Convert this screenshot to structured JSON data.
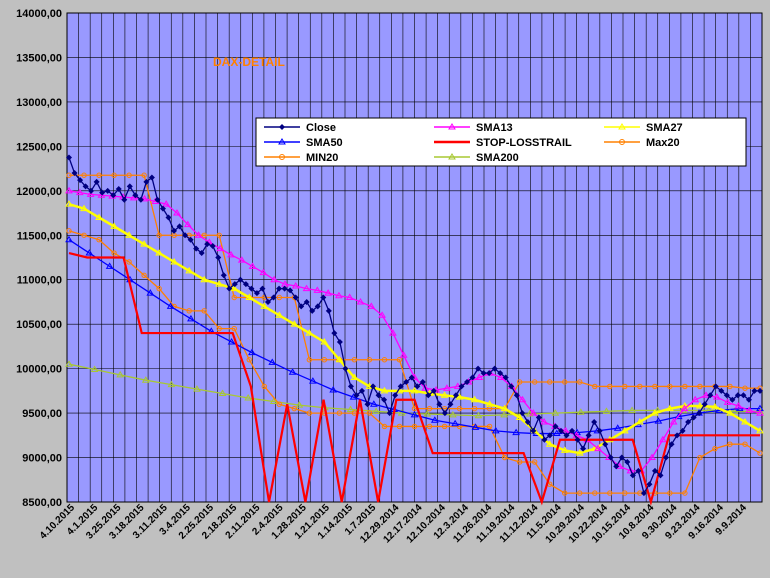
{
  "chart_data": {
    "type": "line",
    "title": "DAX-DETAIL",
    "ylim": [
      8500,
      14000
    ],
    "yticks": [
      "14000,00",
      "13500,00",
      "13000,00",
      "12500,00",
      "12000,00",
      "11500,00",
      "11000,00",
      "10500,00",
      "10000,00",
      "9500,00",
      "9000,00",
      "8500,00"
    ],
    "x_direction": "reversed (newest on left)",
    "x_tick_labels": [
      "4.10.2015",
      "4.1.2015",
      "3.25.2015",
      "3.18.2015",
      "3.11.2015",
      "3.4.2015",
      "2.25.2015",
      "2.18.2015",
      "2.11.2015",
      "2.4.2015",
      "1.28.2015",
      "1.21.2015",
      "1.14.2015",
      "1.7.2015",
      "12.29.2014",
      "12.17.2014",
      "12.10.2014",
      "12.3.2014",
      "11.26.2014",
      "11.19.2014",
      "11.12.2014",
      "11.5.2014",
      "10.29.2014",
      "10.22.2014",
      "10.15.2014",
      "10.8.2014",
      "9.30.2014",
      "9.23.2014",
      "9.16.2014",
      "9.9.2014"
    ],
    "series": [
      {
        "name": "Close",
        "color": "#000080",
        "marker": "diamond",
        "values": [
          12375,
          12200,
          12120,
          12050,
          12000,
          12100,
          11980,
          12000,
          11950,
          12020,
          11900,
          12050,
          11950,
          11900,
          12100,
          12150,
          11900,
          11800,
          11700,
          11550,
          11600,
          11500,
          11450,
          11350,
          11300,
          11400,
          11380,
          11250,
          11050,
          10900,
          10950,
          11000,
          10950,
          10900,
          10850,
          10900,
          10750,
          10800,
          10900,
          10900,
          10880,
          10800,
          10700,
          10750,
          10650,
          10700,
          10800,
          10650,
          10400,
          10300,
          10000,
          9800,
          9700,
          9750,
          9600,
          9800,
          9700,
          9650,
          9500,
          9700,
          9800,
          9850,
          9900,
          9800,
          9850,
          9700,
          9750,
          9600,
          9500,
          9600,
          9700,
          9800,
          9850,
          9900,
          10000,
          9950,
          9950,
          10000,
          9950,
          9900,
          9800,
          9700,
          9500,
          9400,
          9300,
          9450,
          9200,
          9250,
          9350,
          9300,
          9250,
          9300,
          9200,
          9100,
          9250,
          9400,
          9300,
          9150,
          9000,
          8900,
          9000,
          8950,
          8800,
          8850,
          8600,
          8700,
          8850,
          8800,
          9000,
          9150,
          9250,
          9300,
          9400,
          9450,
          9500,
          9600,
          9700,
          9800,
          9750,
          9700,
          9650,
          9700,
          9700,
          9650,
          9750,
          9750
        ]
      },
      {
        "name": "SMA13",
        "color": "#ff00ff",
        "marker": "triangle",
        "values": [
          12000,
          11980,
          11960,
          11950,
          11940,
          11930,
          11920,
          11910,
          11880,
          11850,
          11750,
          11620,
          11500,
          11420,
          11350,
          11280,
          11220,
          11150,
          11080,
          11000,
          10950,
          10930,
          10900,
          10880,
          10850,
          10820,
          10800,
          10750,
          10700,
          10600,
          10400,
          10150,
          9900,
          9780,
          9760,
          9780,
          9800,
          9850,
          9900,
          9950,
          9900,
          9800,
          9650,
          9500,
          9400,
          9350,
          9300,
          9250,
          9200,
          9100,
          9000,
          8900,
          8850,
          8850,
          9000,
          9200,
          9400,
          9550,
          9650,
          9700,
          9680,
          9620,
          9580,
          9530,
          9500
        ]
      },
      {
        "name": "SMA27",
        "color": "#ffff00",
        "marker": "triangle",
        "values": [
          11850,
          11800,
          11700,
          11600,
          11500,
          11400,
          11300,
          11200,
          11100,
          11000,
          10950,
          10900,
          10800,
          10700,
          10600,
          10500,
          10400,
          10300,
          10100,
          9900,
          9800,
          9750,
          9750,
          9750,
          9720,
          9700,
          9680,
          9650,
          9600,
          9550,
          9450,
          9300,
          9150,
          9080,
          9050,
          9100,
          9200,
          9300,
          9400,
          9500,
          9550,
          9580,
          9580,
          9570,
          9500,
          9400,
          9300
        ]
      },
      {
        "name": "SMA50",
        "color": "#0000ff",
        "marker": "triangle",
        "values": [
          11450,
          11300,
          11150,
          11000,
          10850,
          10700,
          10560,
          10420,
          10300,
          10180,
          10070,
          9960,
          9860,
          9760,
          9680,
          9600,
          9540,
          9480,
          9420,
          9380,
          9340,
          9300,
          9280,
          9270,
          9270,
          9280,
          9300,
          9330,
          9370,
          9410,
          9460,
          9500,
          9530,
          9550,
          9550
        ]
      },
      {
        "name": "STOP-LOSSTRAIL",
        "color": "#ff0000",
        "marker": "none",
        "values": [
          11300,
          11250,
          11250,
          11250,
          10400,
          10400,
          10400,
          10400,
          10400,
          10400,
          9800,
          8500,
          9600,
          8500,
          9650,
          8500,
          9650,
          8500,
          9650,
          9650,
          9050,
          9050,
          9050,
          9050,
          9050,
          9050,
          8500,
          9200,
          9200,
          9200,
          9200,
          9200,
          8500,
          9250,
          9250,
          9250,
          9250,
          9250,
          9250
        ]
      },
      {
        "name": "Max20",
        "color": "#ff8000",
        "marker": "circle",
        "values": [
          12175,
          12175,
          12175,
          12175,
          12175,
          12175,
          11500,
          11500,
          11500,
          11500,
          11500,
          10800,
          10800,
          10800,
          10800,
          10800,
          10100,
          10100,
          10100,
          10100,
          10100,
          10100,
          10100,
          9550,
          9550,
          9550,
          9550,
          9550,
          9550,
          9550,
          9850,
          9850,
          9850,
          9850,
          9850,
          9800,
          9800,
          9800,
          9800,
          9800,
          9800,
          9800,
          9800,
          9800,
          9800,
          9780,
          9780
        ]
      },
      {
        "name": "MIN20",
        "color": "#ff8000",
        "marker": "circle",
        "values": [
          11550,
          11500,
          11450,
          11300,
          11200,
          11050,
          10900,
          10700,
          10650,
          10650,
          10450,
          10450,
          10100,
          9800,
          9600,
          9550,
          9500,
          9500,
          9500,
          9500,
          9500,
          9350,
          9350,
          9350,
          9350,
          9350,
          9350,
          9350,
          9350,
          9000,
          8950,
          8950,
          8700,
          8600,
          8600,
          8600,
          8600,
          8600,
          8600,
          8600,
          8600,
          8600,
          9000,
          9100,
          9150,
          9150,
          9050
        ]
      },
      {
        "name": "SMA200",
        "color": "#a8c832",
        "marker": "triangle",
        "values": [
          10050,
          9990,
          9930,
          9870,
          9820,
          9770,
          9720,
          9670,
          9630,
          9590,
          9560,
          9540,
          9520,
          9500,
          9490,
          9480,
          9470,
          9480,
          9490,
          9500,
          9510,
          9520,
          9530,
          9530,
          9530,
          9530,
          9520,
          9520
        ]
      }
    ]
  }
}
